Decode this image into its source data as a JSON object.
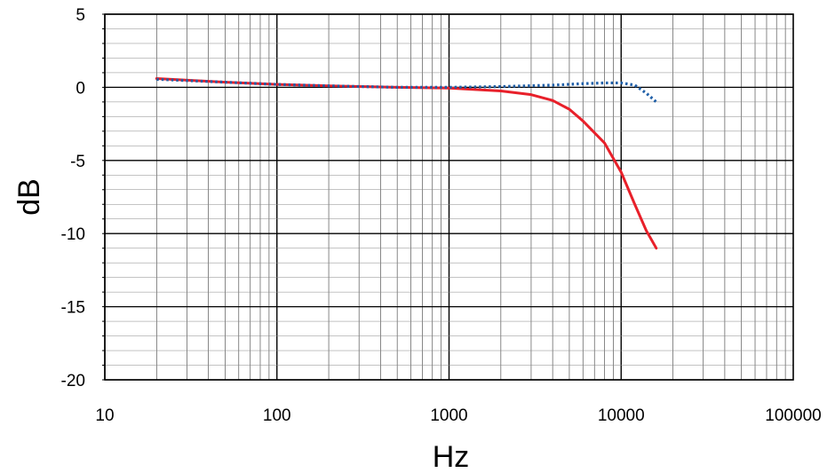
{
  "chart_data": {
    "type": "line",
    "xlabel": "Hz",
    "ylabel": "dB",
    "x_scale": "log",
    "xlim": [
      10,
      100000
    ],
    "ylim": [
      -20,
      5
    ],
    "grid": true,
    "x_tick_labels": [
      "10",
      "100",
      "1000",
      "10000",
      "100000"
    ],
    "y_tick_labels": [
      "5",
      "0",
      "-5",
      "-10",
      "-15",
      "-20"
    ],
    "series": [
      {
        "color": "#e8202a",
        "style": "solid",
        "points": [
          [
            20,
            0.6
          ],
          [
            50,
            0.35
          ],
          [
            100,
            0.2
          ],
          [
            200,
            0.1
          ],
          [
            500,
            0.0
          ],
          [
            1000,
            -0.05
          ],
          [
            2000,
            -0.25
          ],
          [
            3000,
            -0.5
          ],
          [
            4000,
            -0.9
          ],
          [
            5000,
            -1.5
          ],
          [
            6000,
            -2.3
          ],
          [
            8000,
            -3.8
          ],
          [
            10000,
            -5.8
          ],
          [
            12000,
            -8.0
          ],
          [
            14000,
            -9.8
          ],
          [
            16000,
            -11.0
          ]
        ]
      },
      {
        "color": "#1f5fa8",
        "style": "dotted",
        "points": [
          [
            20,
            0.55
          ],
          [
            50,
            0.35
          ],
          [
            100,
            0.2
          ],
          [
            200,
            0.1
          ],
          [
            500,
            0.0
          ],
          [
            1000,
            0.0
          ],
          [
            2000,
            0.05
          ],
          [
            4000,
            0.15
          ],
          [
            6000,
            0.25
          ],
          [
            8000,
            0.3
          ],
          [
            10000,
            0.3
          ],
          [
            12000,
            0.15
          ],
          [
            14000,
            -0.4
          ],
          [
            16000,
            -1.0
          ]
        ]
      }
    ]
  }
}
